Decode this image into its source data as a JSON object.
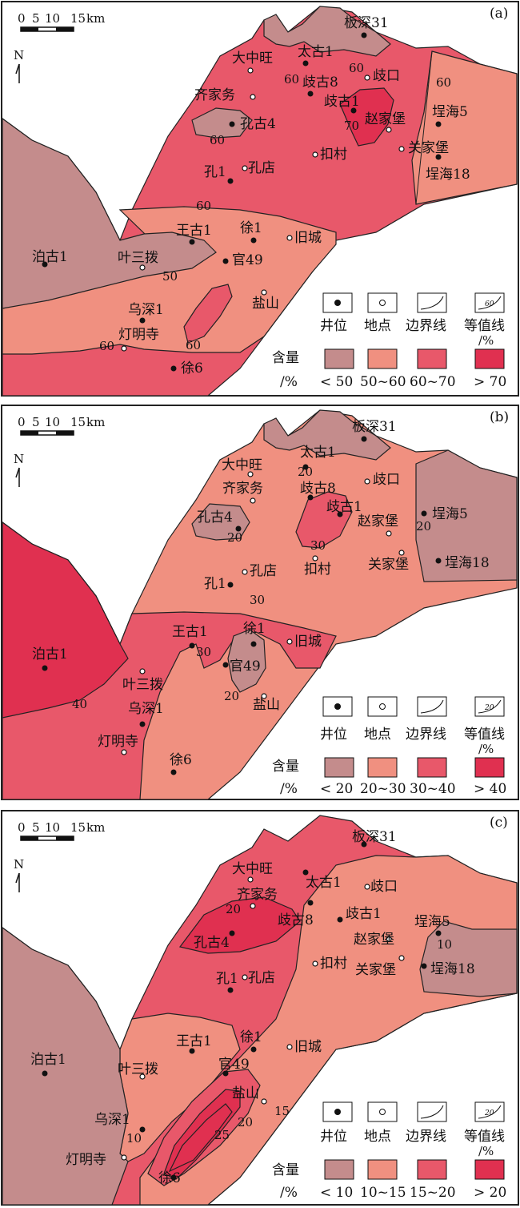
{
  "colors": {
    "c1": "#c48c8c",
    "c2": "#f09080",
    "c3": "#e8586a",
    "c4": "#e03050",
    "line": "#222222"
  },
  "scale_bar": {
    "ticks": [
      "0",
      "5",
      "10",
      "15"
    ],
    "unit": "km"
  },
  "north": "N",
  "legend_symbols": {
    "well": "井位",
    "place": "地点",
    "boundary": "边界线",
    "isoline": "等值线",
    "isoline_unit": "/%"
  },
  "legend_content": {
    "title": "含量",
    "unit": "/%"
  },
  "panels": [
    {
      "tag": "(a)",
      "isoline_sample": "60",
      "classes": [
        "< 50",
        "50~60",
        "60~70",
        "> 70"
      ],
      "contour_labels": [
        "60",
        "60",
        "60",
        "60",
        "70",
        "60",
        "50",
        "60",
        "60"
      ]
    },
    {
      "tag": "(b)",
      "isoline_sample": "20",
      "classes": [
        "< 20",
        "20~30",
        "30~40",
        "> 40"
      ],
      "contour_labels": [
        "20",
        "20",
        "30",
        "20",
        "30",
        "30",
        "20",
        "40"
      ]
    },
    {
      "tag": "(c)",
      "isoline_sample": "20",
      "classes": [
        "< 10",
        "10~15",
        "15~20",
        "> 20"
      ],
      "contour_labels": [
        "20",
        "10",
        "15",
        "20",
        "25",
        "10"
      ]
    }
  ],
  "wells": {
    "a": [
      "板深31",
      "太古1",
      "歧古8",
      "歧古1",
      "孔古4",
      "孔1",
      "埕海5",
      "埕海18",
      "王古1",
      "徐1",
      "官49",
      "泊古1",
      "乌深1",
      "徐6"
    ],
    "b": [
      "板深31",
      "太古1",
      "歧古8",
      "歧古1",
      "孔古4",
      "孔1",
      "埕海5",
      "埕海18",
      "王古1",
      "徐1",
      "官49",
      "泊古1",
      "乌深1",
      "徐6"
    ],
    "c": [
      "板深31",
      "太古1",
      "歧古8",
      "歧古1",
      "孔古4",
      "孔1",
      "埕海5",
      "埕海18",
      "王古1",
      "徐1",
      "官49",
      "泊古1",
      "乌深1",
      "徐6"
    ]
  },
  "places": {
    "a": [
      "大中旺",
      "歧口",
      "齐家务",
      "赵家堡",
      "扣村",
      "关家堡",
      "孔店",
      "旧城",
      "叶三拨",
      "盐山",
      "灯明寺"
    ],
    "b": [
      "大中旺",
      "齐家务",
      "歧口",
      "赵家堡",
      "扣村",
      "关家堡",
      "孔店",
      "旧城",
      "叶三拨",
      "盐山",
      "灯明寺"
    ],
    "c": [
      "大中旺",
      "歧口",
      "齐家务",
      "赵家堡",
      "扣村",
      "关家堡",
      "孔店",
      "旧城",
      "叶三拨",
      "盐山",
      "灯明寺"
    ]
  }
}
